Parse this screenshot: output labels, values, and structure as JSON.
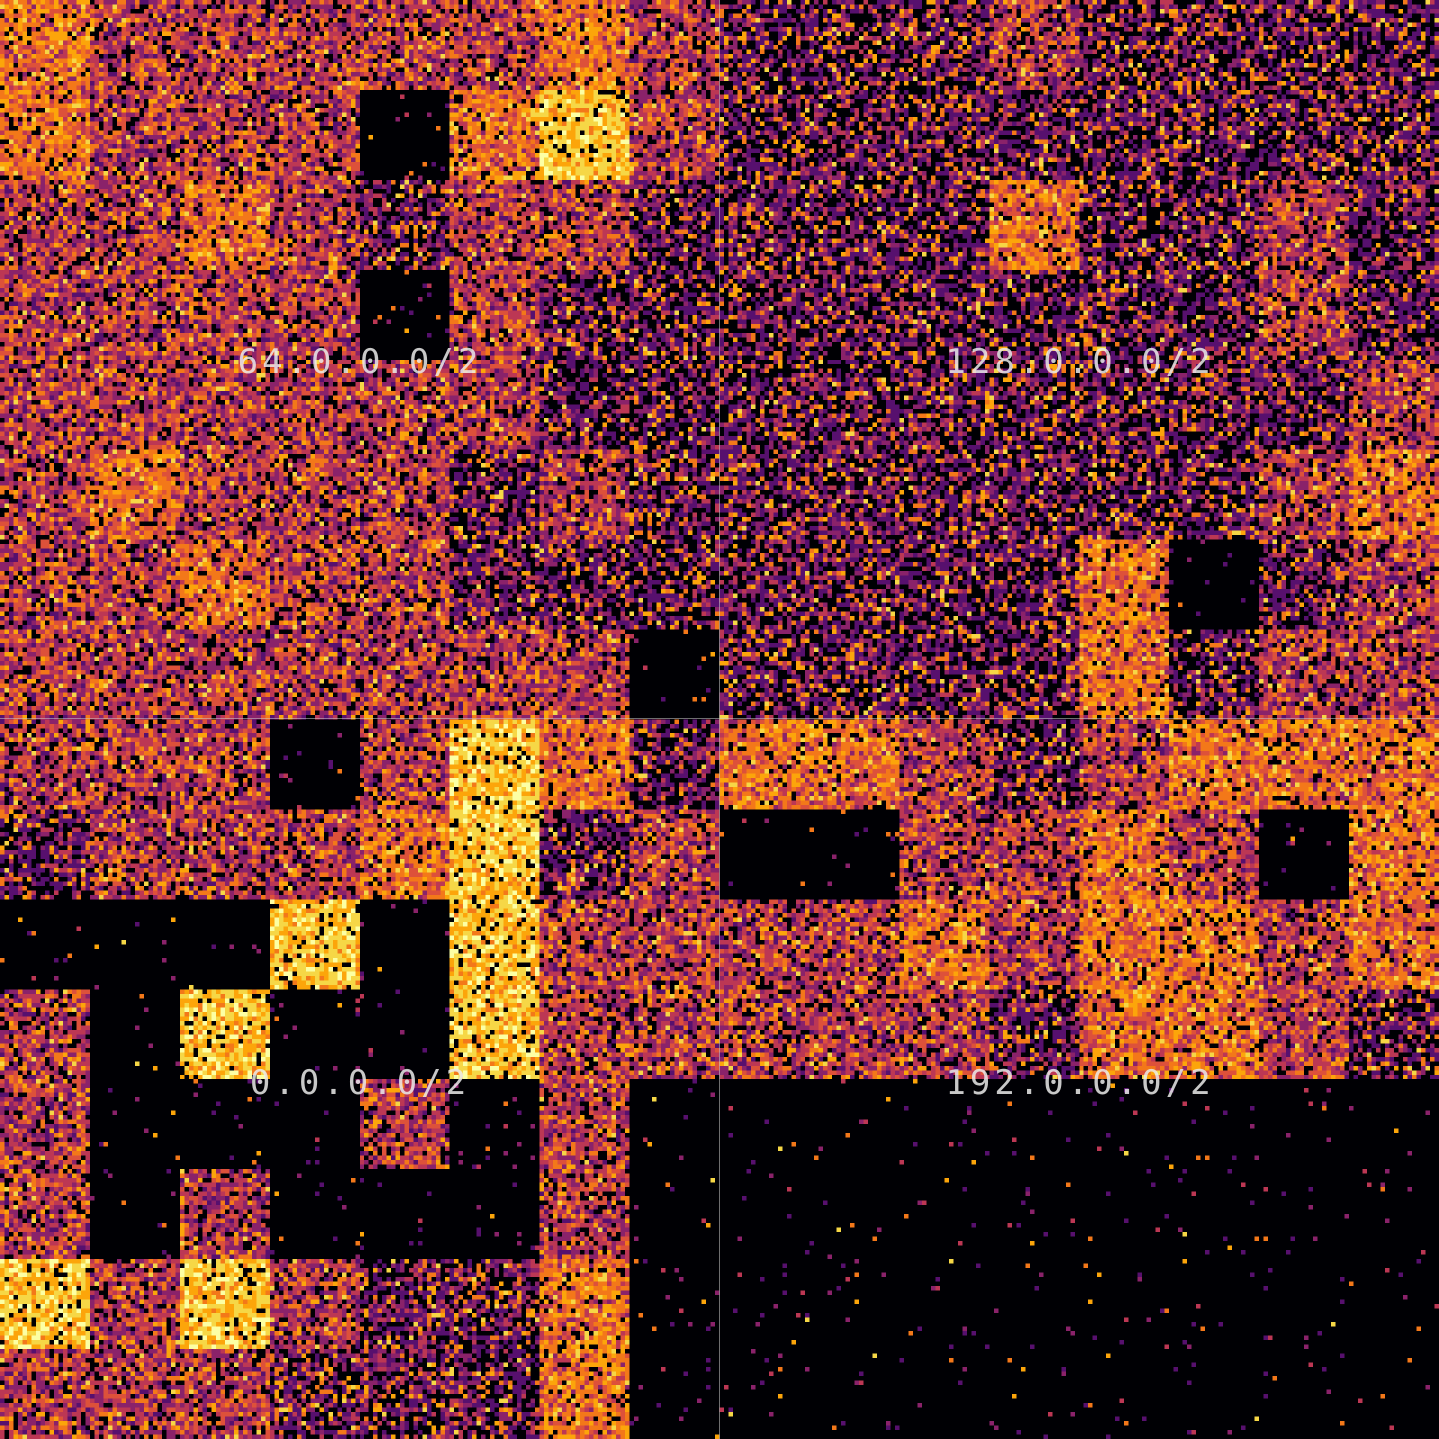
{
  "chart_data": {
    "type": "heatmap",
    "title": "",
    "layout": "hilbert-curve map of IPv4 address space, 2x2 quadrants",
    "colormap": "inferno",
    "colors": [
      "#000004",
      "#320a5e",
      "#57106e",
      "#8a226a",
      "#bc3754",
      "#dd513a",
      "#f37819",
      "#fca50a",
      "#f6d746",
      "#fcffa4"
    ],
    "quadrants": [
      {
        "label": "64.0.0.0/2",
        "position": "top-left"
      },
      {
        "label": "128.0.0.0/2",
        "position": "top-right"
      },
      {
        "label": "0.0.0.0/2",
        "position": "bottom-left"
      },
      {
        "label": "192.0.0.0/2",
        "position": "bottom-right"
      }
    ],
    "divider_color": "#c8c8c8"
  }
}
